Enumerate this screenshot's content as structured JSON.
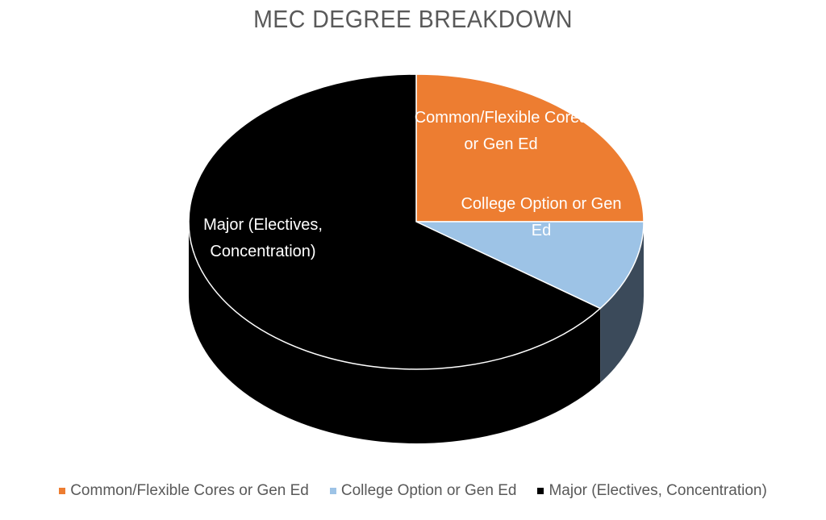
{
  "chart_data": {
    "type": "pie",
    "title": "MEC DEGREE BREAKDOWN",
    "categories": [
      "Common/Flexible Cores or Gen Ed",
      "College Option or Gen Ed",
      "Major (Electives, Concentration)"
    ],
    "values": [
      25,
      10,
      65
    ],
    "slice_labels": [
      [
        "Common/Flexible Cores",
        "or Gen Ed"
      ],
      [
        "College Option or Gen",
        "Ed"
      ],
      [
        "Major (Electives,",
        "Concentration)"
      ]
    ],
    "colors": [
      "#ED7D31",
      "#9DC3E6",
      "#000000"
    ],
    "label_colors": [
      "#ffffff",
      "#ffffff",
      "#ffffff"
    ],
    "style": "3d",
    "legend_position": "bottom"
  }
}
